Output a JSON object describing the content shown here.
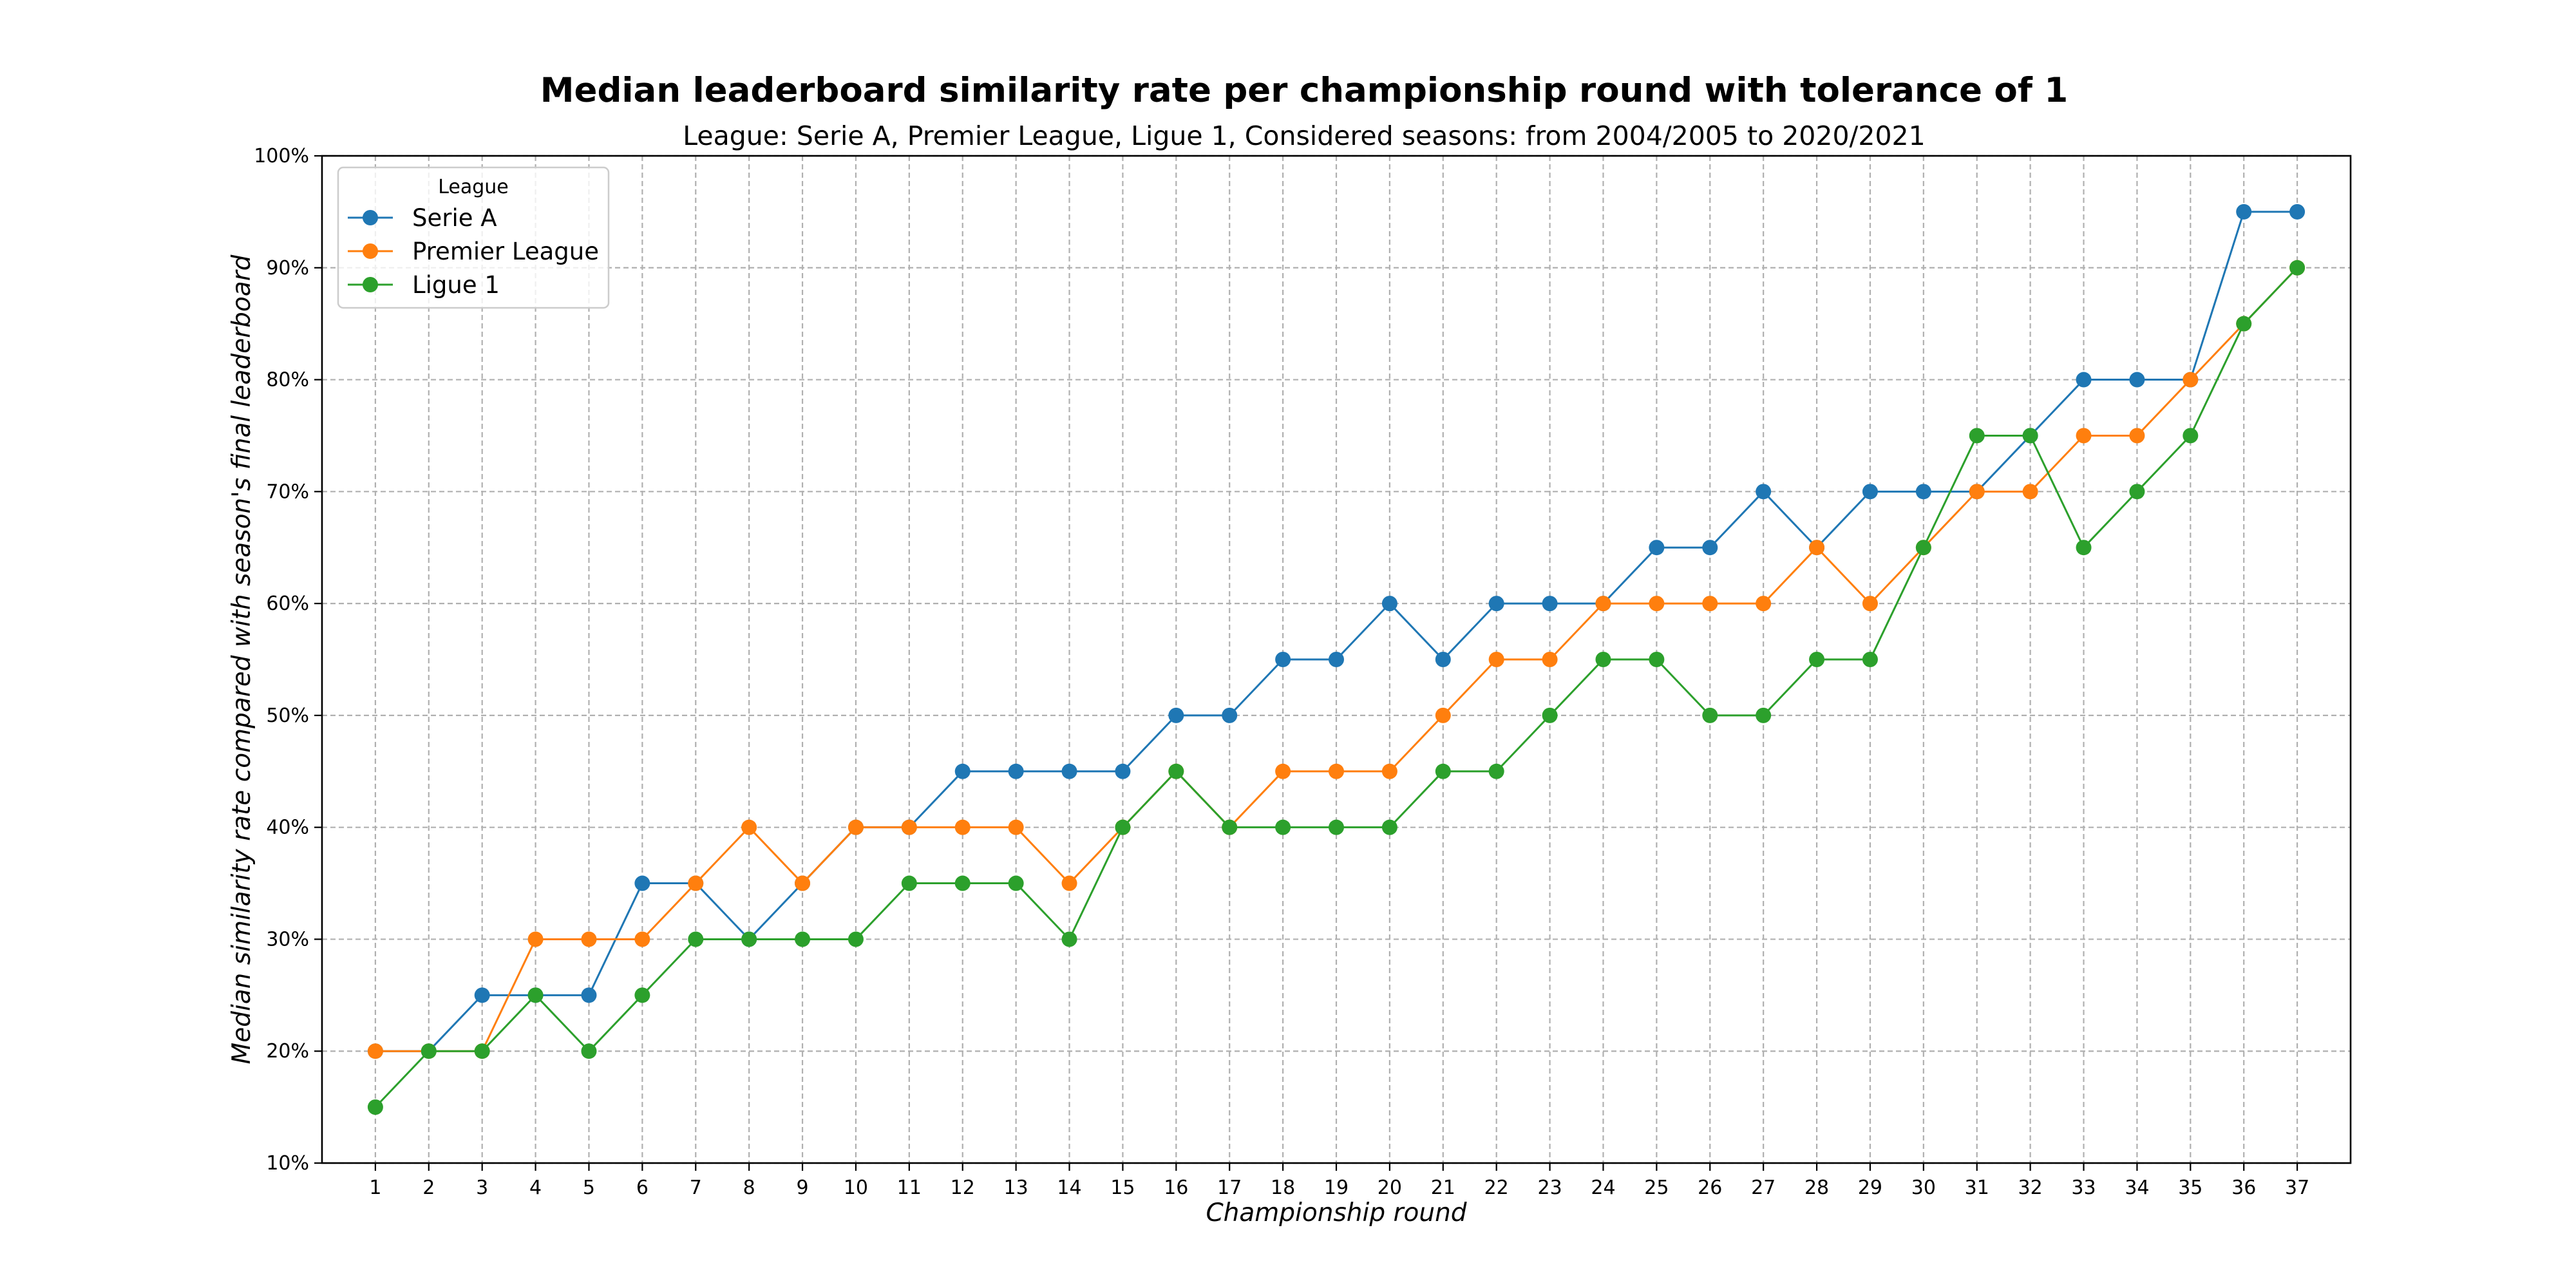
{
  "chart_data": {
    "type": "line",
    "title": "Median leaderboard similarity rate per championship round with tolerance of 1",
    "subtitle": "League: Serie A, Premier League, Ligue 1, Considered seasons: from 2004/2005 to 2020/2021",
    "xlabel": "Championship round",
    "ylabel": "Median similarity rate compared with season's final leaderboard",
    "x": [
      1,
      2,
      3,
      4,
      5,
      6,
      7,
      8,
      9,
      10,
      11,
      12,
      13,
      14,
      15,
      16,
      17,
      18,
      19,
      20,
      21,
      22,
      23,
      24,
      25,
      26,
      27,
      28,
      29,
      30,
      31,
      32,
      33,
      34,
      35,
      36,
      37
    ],
    "x_tick_labels": [
      "1",
      "2",
      "3",
      "4",
      "5",
      "6",
      "7",
      "8",
      "9",
      "10",
      "11",
      "12",
      "13",
      "14",
      "15",
      "16",
      "17",
      "18",
      "19",
      "20",
      "21",
      "22",
      "23",
      "24",
      "25",
      "26",
      "27",
      "28",
      "29",
      "30",
      "31",
      "32",
      "33",
      "34",
      "35",
      "36",
      "37"
    ],
    "xlim": [
      0,
      38
    ],
    "ylim": [
      10,
      100
    ],
    "y_ticks": [
      10,
      20,
      30,
      40,
      50,
      60,
      70,
      80,
      90,
      100
    ],
    "y_tick_labels": [
      "10%",
      "20%",
      "30%",
      "40%",
      "50%",
      "60%",
      "70%",
      "80%",
      "90%",
      "100%"
    ],
    "grid": true,
    "legend": {
      "title": "League",
      "placement": "top-left"
    },
    "series": [
      {
        "name": "Serie A",
        "color": "#1f77b4",
        "values": [
          20,
          20,
          25,
          25,
          25,
          35,
          35,
          30,
          35,
          40,
          40,
          45,
          45,
          45,
          45,
          50,
          50,
          55,
          55,
          60,
          55,
          60,
          60,
          60,
          65,
          65,
          70,
          65,
          70,
          70,
          70,
          75,
          80,
          80,
          80,
          95,
          95
        ]
      },
      {
        "name": "Premier League",
        "color": "#ff7f0e",
        "values": [
          20,
          20,
          20,
          30,
          30,
          30,
          35,
          40,
          35,
          40,
          40,
          40,
          40,
          35,
          40,
          45,
          40,
          45,
          45,
          45,
          50,
          55,
          55,
          60,
          60,
          60,
          60,
          65,
          60,
          65,
          70,
          70,
          75,
          75,
          80,
          85,
          90
        ]
      },
      {
        "name": "Ligue 1",
        "color": "#2ca02c",
        "values": [
          15,
          20,
          20,
          25,
          20,
          25,
          30,
          30,
          30,
          30,
          35,
          35,
          35,
          30,
          40,
          45,
          40,
          40,
          40,
          40,
          45,
          45,
          50,
          55,
          55,
          50,
          50,
          55,
          55,
          65,
          75,
          75,
          65,
          70,
          75,
          85,
          90
        ]
      }
    ]
  }
}
